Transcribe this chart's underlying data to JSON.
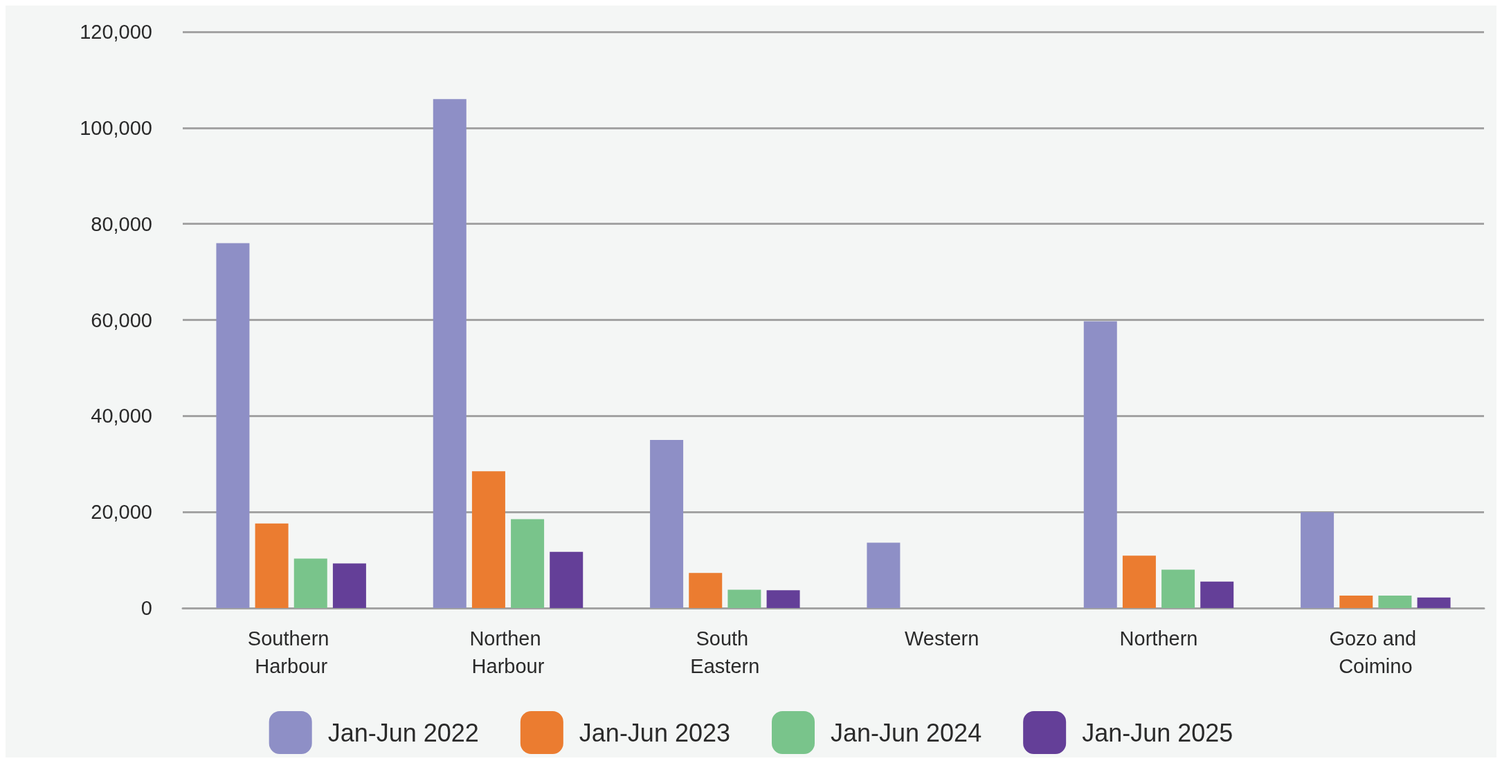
{
  "chart_data": {
    "type": "bar",
    "categories": [
      "Southern Harbour",
      "Northen Harbour",
      "South Eastern",
      "Western",
      "Northern",
      "Gozo and Coimino"
    ],
    "series": [
      {
        "name": "Jan-Jun 2022",
        "color": "#8e8fc6",
        "values": [
          76000,
          106000,
          35000,
          13600,
          59700,
          20000
        ]
      },
      {
        "name": "Jan-Jun 2023",
        "color": "#eb7c30",
        "values": [
          17600,
          28500,
          7300,
          null,
          10900,
          2600
        ]
      },
      {
        "name": "Jan-Jun 2024",
        "color": "#79c48b",
        "values": [
          10300,
          18500,
          3800,
          null,
          8000,
          2600
        ]
      },
      {
        "name": "Jan-Jun 2025",
        "color": "#643f98",
        "values": [
          9300,
          11700,
          3700,
          null,
          5500,
          2200
        ]
      }
    ],
    "ylim": [
      0,
      120000
    ],
    "yticks": [
      0,
      {
        "value": 20000,
        "label": "20,000"
      },
      {
        "value": 40000,
        "label": "40,000"
      },
      {
        "value": 60000,
        "label": "60,000"
      },
      {
        "value": 80000,
        "label": "80,000"
      },
      {
        "value": 100000,
        "label": "100,000"
      },
      {
        "value": 120000,
        "label": "120,000"
      }
    ],
    "grid": "y",
    "legend": "bottom"
  }
}
